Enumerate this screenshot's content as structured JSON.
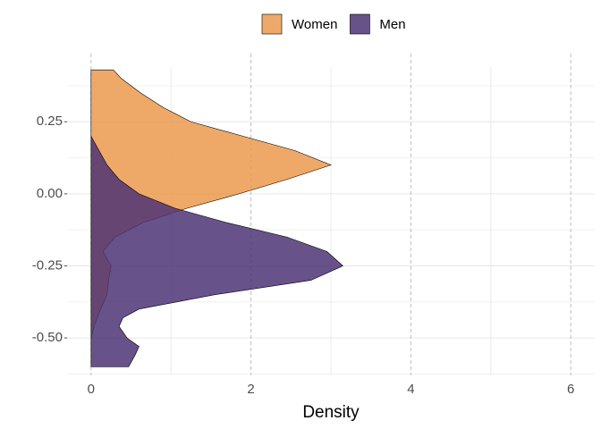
{
  "chart_data": {
    "type": "density",
    "xlabel": "Density",
    "xlim": [
      -0.3,
      6.3
    ],
    "xticks": [
      0,
      2,
      4,
      6
    ],
    "ylim": [
      -0.63,
      0.44
    ],
    "yticks": [
      {
        "value": -0.5,
        "label": "-0.50"
      },
      -0.25,
      {
        "value": 0,
        "label": "0.00"
      },
      0.25
    ],
    "grid": true,
    "legend": "top",
    "opacity": 0.85,
    "series": [
      {
        "name": "Women",
        "color": "#eb9a4e",
        "y": [
          0.43,
          0.4,
          0.35,
          0.3,
          0.25,
          0.2,
          0.15,
          0.1,
          0.05,
          0,
          -0.05,
          -0.1,
          -0.15,
          -0.2,
          -0.25,
          -0.3,
          -0.35,
          -0.4,
          -0.45,
          -0.5
        ],
        "values": [
          0.28,
          0.38,
          0.62,
          0.9,
          1.25,
          1.9,
          2.55,
          3.0,
          2.45,
          1.85,
          1.2,
          0.65,
          0.3,
          0.15,
          0.25,
          0.22,
          0.2,
          0.12,
          0.05,
          0.0
        ]
      },
      {
        "name": "Men",
        "color": "#4e3476",
        "y": [
          0.2,
          0.15,
          0.1,
          0.05,
          0,
          -0.05,
          -0.1,
          -0.15,
          -0.2,
          -0.25,
          -0.3,
          -0.35,
          -0.4,
          -0.43,
          -0.46,
          -0.5,
          -0.53,
          -0.56,
          -0.6
        ],
        "values": [
          0,
          0.1,
          0.2,
          0.35,
          0.6,
          1.05,
          1.7,
          2.45,
          2.95,
          3.15,
          2.75,
          1.55,
          0.6,
          0.4,
          0.35,
          0.45,
          0.6,
          0.55,
          0.47
        ]
      }
    ]
  }
}
